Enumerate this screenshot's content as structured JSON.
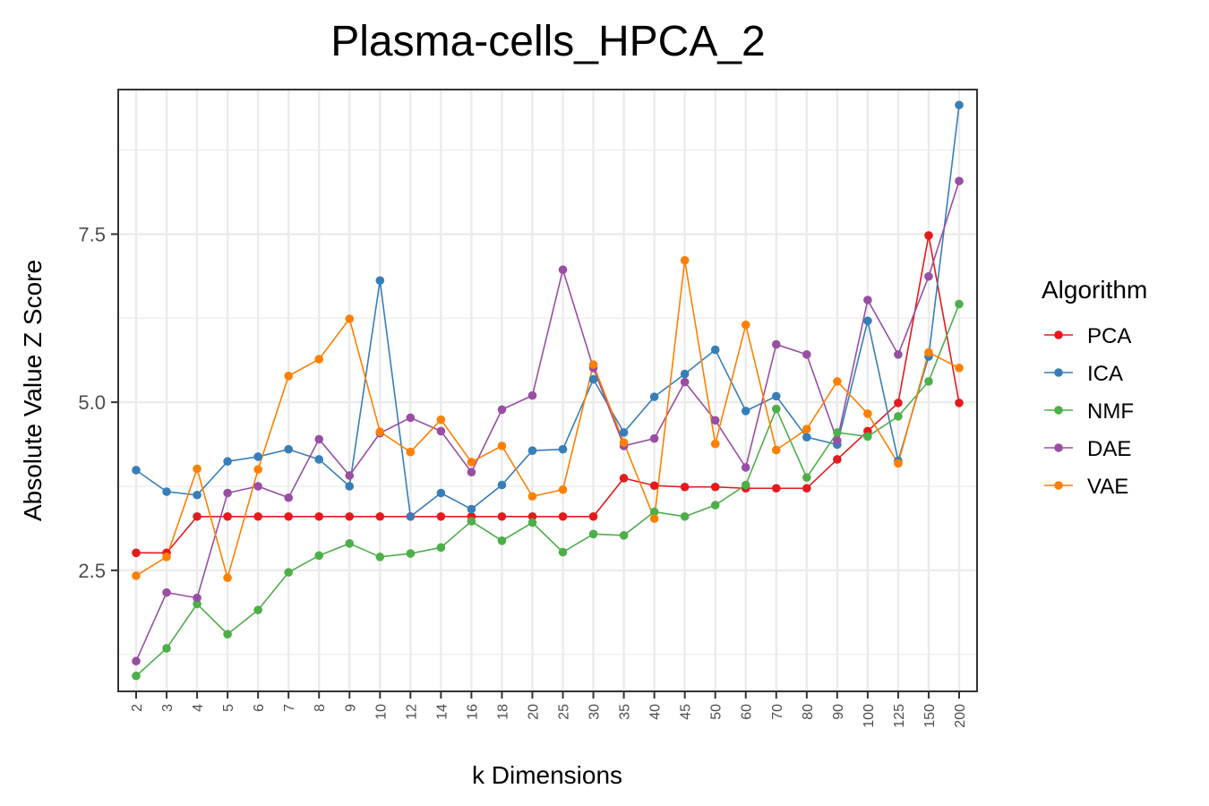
{
  "chart_data": {
    "type": "line",
    "title": "Plasma-cells_HPCA_2",
    "xlabel": "k Dimensions",
    "ylabel": "Absolute Value Z Score",
    "categories": [
      "2",
      "3",
      "4",
      "5",
      "6",
      "7",
      "8",
      "9",
      "10",
      "12",
      "14",
      "16",
      "18",
      "20",
      "25",
      "30",
      "35",
      "40",
      "45",
      "50",
      "60",
      "70",
      "80",
      "90",
      "100",
      "125",
      "150",
      "200"
    ],
    "ylim": [
      0.7,
      9.65
    ],
    "yticks": [
      2.5,
      5.0,
      7.5
    ],
    "ytick_labels": [
      "2.5",
      "5.0",
      "7.5"
    ],
    "grid": true,
    "legend": {
      "title": "Algorithm",
      "placement": "right"
    },
    "series": [
      {
        "name": "PCA",
        "color": "#e41a1c",
        "values": [
          2.76,
          2.76,
          3.3,
          3.3,
          3.3,
          3.3,
          3.3,
          3.3,
          3.3,
          3.3,
          3.3,
          3.3,
          3.3,
          3.3,
          3.3,
          3.3,
          3.87,
          3.76,
          3.74,
          3.74,
          3.72,
          3.72,
          3.72,
          4.15,
          4.57,
          4.99,
          7.48,
          4.99
        ]
      },
      {
        "name": "ICA",
        "color": "#377eb8",
        "values": [
          3.99,
          3.67,
          3.62,
          4.12,
          4.19,
          4.3,
          4.15,
          3.75,
          6.81,
          3.3,
          3.65,
          3.41,
          3.77,
          4.28,
          4.3,
          5.34,
          4.55,
          5.08,
          5.42,
          5.78,
          4.87,
          5.09,
          4.48,
          4.37,
          6.21,
          4.13,
          5.68,
          9.42
        ]
      },
      {
        "name": "NMF",
        "color": "#4daf4a",
        "values": [
          0.93,
          1.34,
          2.0,
          1.55,
          1.91,
          2.47,
          2.72,
          2.9,
          2.7,
          2.75,
          2.84,
          3.23,
          2.94,
          3.21,
          2.77,
          3.04,
          3.02,
          3.37,
          3.3,
          3.47,
          3.77,
          4.9,
          3.88,
          4.55,
          4.49,
          4.79,
          5.31,
          6.46
        ]
      },
      {
        "name": "DAE",
        "color": "#984ea3",
        "values": [
          1.15,
          2.17,
          2.09,
          3.65,
          3.75,
          3.58,
          4.45,
          3.91,
          4.54,
          4.77,
          4.57,
          3.96,
          4.89,
          5.1,
          6.97,
          5.51,
          4.35,
          4.46,
          5.3,
          4.73,
          4.03,
          5.86,
          5.71,
          4.43,
          6.52,
          5.71,
          6.87,
          8.29
        ]
      },
      {
        "name": "VAE",
        "color": "#ff7f00",
        "values": [
          2.42,
          2.7,
          4.01,
          2.39,
          4.0,
          5.39,
          5.64,
          6.24,
          4.56,
          4.26,
          4.74,
          4.11,
          4.35,
          3.6,
          3.7,
          5.56,
          4.4,
          3.27,
          7.11,
          4.38,
          6.15,
          4.29,
          4.6,
          5.31,
          4.83,
          4.09,
          5.74,
          5.51
        ]
      }
    ]
  }
}
